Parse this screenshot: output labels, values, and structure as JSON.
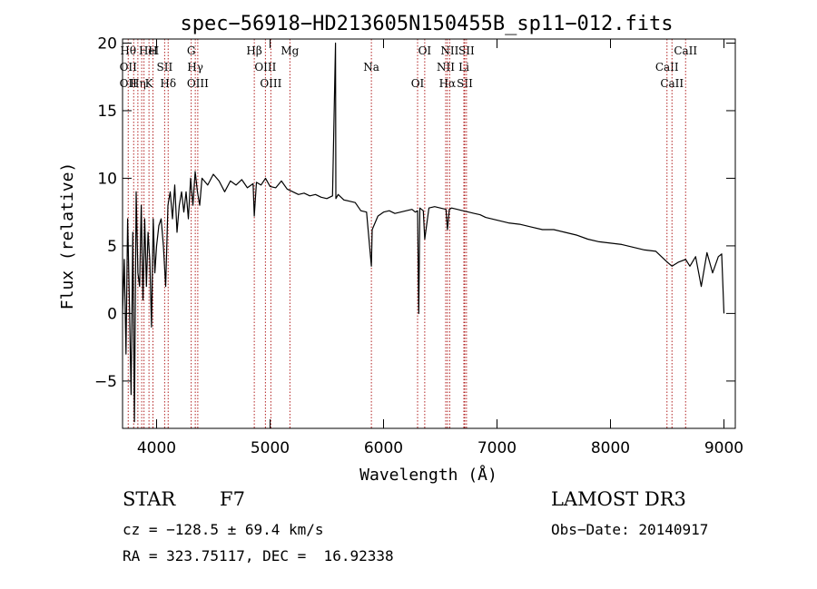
{
  "chart_data": {
    "type": "line",
    "title": "spec−56918−HD213605N150455B_sp11−012.fits",
    "xlabel": "Wavelength (Å)",
    "ylabel": "Flux (relative)",
    "xlim": [
      3700,
      9100
    ],
    "ylim": [
      -8.5,
      20.3
    ],
    "xticks": [
      4000,
      5000,
      6000,
      7000,
      8000,
      9000
    ],
    "xtick_labels": [
      "4000",
      "5000",
      "6000",
      "7000",
      "8000",
      "9000"
    ],
    "yticks": [
      -5,
      0,
      5,
      10,
      15,
      20
    ],
    "ytick_labels": [
      "−5",
      "0",
      "5",
      "10",
      "15",
      "20"
    ],
    "line_color": "#000000",
    "marker_color": "#b22222",
    "series": [
      {
        "name": "flux",
        "x": [
          3700,
          3715,
          3730,
          3745,
          3760,
          3775,
          3790,
          3805,
          3820,
          3835,
          3850,
          3865,
          3880,
          3895,
          3910,
          3925,
          3940,
          3955,
          3970,
          3985,
          4000,
          4020,
          4040,
          4060,
          4080,
          4100,
          4120,
          4140,
          4160,
          4180,
          4200,
          4220,
          4240,
          4260,
          4280,
          4300,
          4320,
          4340,
          4360,
          4380,
          4400,
          4450,
          4500,
          4550,
          4600,
          4650,
          4700,
          4750,
          4800,
          4850,
          4861,
          4880,
          4920,
          4960,
          5000,
          5050,
          5100,
          5150,
          5200,
          5250,
          5300,
          5350,
          5400,
          5450,
          5500,
          5550,
          5577,
          5580,
          5600,
          5650,
          5700,
          5750,
          5800,
          5850,
          5893,
          5900,
          5950,
          6000,
          6050,
          6100,
          6150,
          6200,
          6250,
          6280,
          6300,
          6310,
          6320,
          6350,
          6363,
          6400,
          6450,
          6500,
          6550,
          6563,
          6580,
          6600,
          6650,
          6700,
          6750,
          6800,
          6850,
          6900,
          6950,
          7000,
          7100,
          7200,
          7300,
          7400,
          7500,
          7600,
          7700,
          7800,
          7900,
          8000,
          8100,
          8200,
          8300,
          8400,
          8500,
          8542,
          8600,
          8662,
          8700,
          8750,
          8800,
          8850,
          8900,
          8950,
          8980,
          9000
        ],
        "y": [
          0,
          4,
          -3,
          7,
          1,
          -6,
          6,
          -8,
          9,
          3,
          2,
          8,
          1,
          7,
          2,
          6,
          4,
          -1,
          7,
          3,
          5,
          6.5,
          7,
          5,
          2,
          8,
          9,
          7,
          9.5,
          6,
          8,
          9,
          7.5,
          9,
          7,
          10,
          8,
          10.5,
          9,
          8,
          10,
          9.5,
          10.3,
          9.8,
          9,
          9.8,
          9.5,
          9.9,
          9.3,
          9.6,
          7.2,
          9.7,
          9.5,
          10,
          9.4,
          9.3,
          9.8,
          9.2,
          9,
          8.8,
          8.9,
          8.7,
          8.8,
          8.6,
          8.5,
          8.7,
          20,
          8.5,
          8.8,
          8.4,
          8.3,
          8.2,
          7.6,
          7.5,
          3.5,
          6.2,
          7.2,
          7.5,
          7.6,
          7.4,
          7.5,
          7.6,
          7.7,
          7.5,
          7.6,
          0,
          7.8,
          7.6,
          5.5,
          7.8,
          7.9,
          7.8,
          7.7,
          6.2,
          7.7,
          7.8,
          7.7,
          7.6,
          7.5,
          7.4,
          7.3,
          7.1,
          7,
          6.9,
          6.7,
          6.6,
          6.4,
          6.2,
          6.2,
          6,
          5.8,
          5.5,
          5.3,
          5.2,
          5.1,
          4.9,
          4.7,
          4.6,
          3.8,
          3.5,
          3.8,
          4,
          3.5,
          4.2,
          2,
          4.5,
          3,
          4.2,
          4.4,
          0
        ]
      }
    ],
    "line_markers": [
      {
        "wavelength": 3750,
        "labels": [
          "Hθ",
          "OII",
          "OII"
        ]
      },
      {
        "wavelength": 3798,
        "labels": []
      },
      {
        "wavelength": 3835,
        "labels": [
          "Hη"
        ]
      },
      {
        "wavelength": 3869,
        "labels": []
      },
      {
        "wavelength": 3889,
        "labels": []
      },
      {
        "wavelength": 3933,
        "labels": [
          "K",
          "HeI"
        ]
      },
      {
        "wavelength": 3968,
        "labels": [
          "H"
        ]
      },
      {
        "wavelength": 4071,
        "labels": [
          "SII"
        ]
      },
      {
        "wavelength": 4102,
        "labels": [
          "Hδ"
        ]
      },
      {
        "wavelength": 4305,
        "labels": [
          "G"
        ]
      },
      {
        "wavelength": 4341,
        "labels": [
          "Hγ"
        ]
      },
      {
        "wavelength": 4363,
        "labels": [
          "OIII"
        ]
      },
      {
        "wavelength": 4861,
        "labels": [
          "Hβ"
        ]
      },
      {
        "wavelength": 4959,
        "labels": [
          "OIII"
        ]
      },
      {
        "wavelength": 5007,
        "labels": [
          "OIII"
        ]
      },
      {
        "wavelength": 5175,
        "labels": [
          "Mg"
        ]
      },
      {
        "wavelength": 5893,
        "labels": [
          "Na"
        ]
      },
      {
        "wavelength": 6300,
        "labels": [
          "OI"
        ]
      },
      {
        "wavelength": 6363,
        "labels": [
          "OI"
        ]
      },
      {
        "wavelength": 6548,
        "labels": [
          "NII"
        ]
      },
      {
        "wavelength": 6563,
        "labels": [
          "Hα"
        ]
      },
      {
        "wavelength": 6583,
        "labels": [
          "NII"
        ]
      },
      {
        "wavelength": 6708,
        "labels": [
          "Li"
        ]
      },
      {
        "wavelength": 6716,
        "labels": [
          "SII"
        ]
      },
      {
        "wavelength": 6731,
        "labels": [
          "SII"
        ]
      },
      {
        "wavelength": 8498,
        "labels": [
          "CaII"
        ]
      },
      {
        "wavelength": 8542,
        "labels": [
          "CaII"
        ]
      },
      {
        "wavelength": 8662,
        "labels": [
          "CaII"
        ]
      }
    ]
  },
  "info": {
    "object_type": "STAR",
    "subclass": "F7",
    "survey": "LAMOST DR3",
    "cz": "cz = −128.5 ± 69.4 km/s",
    "obs_date": "Obs−Date: 20140917",
    "coords": "RA = 323.75117, DEC =  16.92338"
  }
}
